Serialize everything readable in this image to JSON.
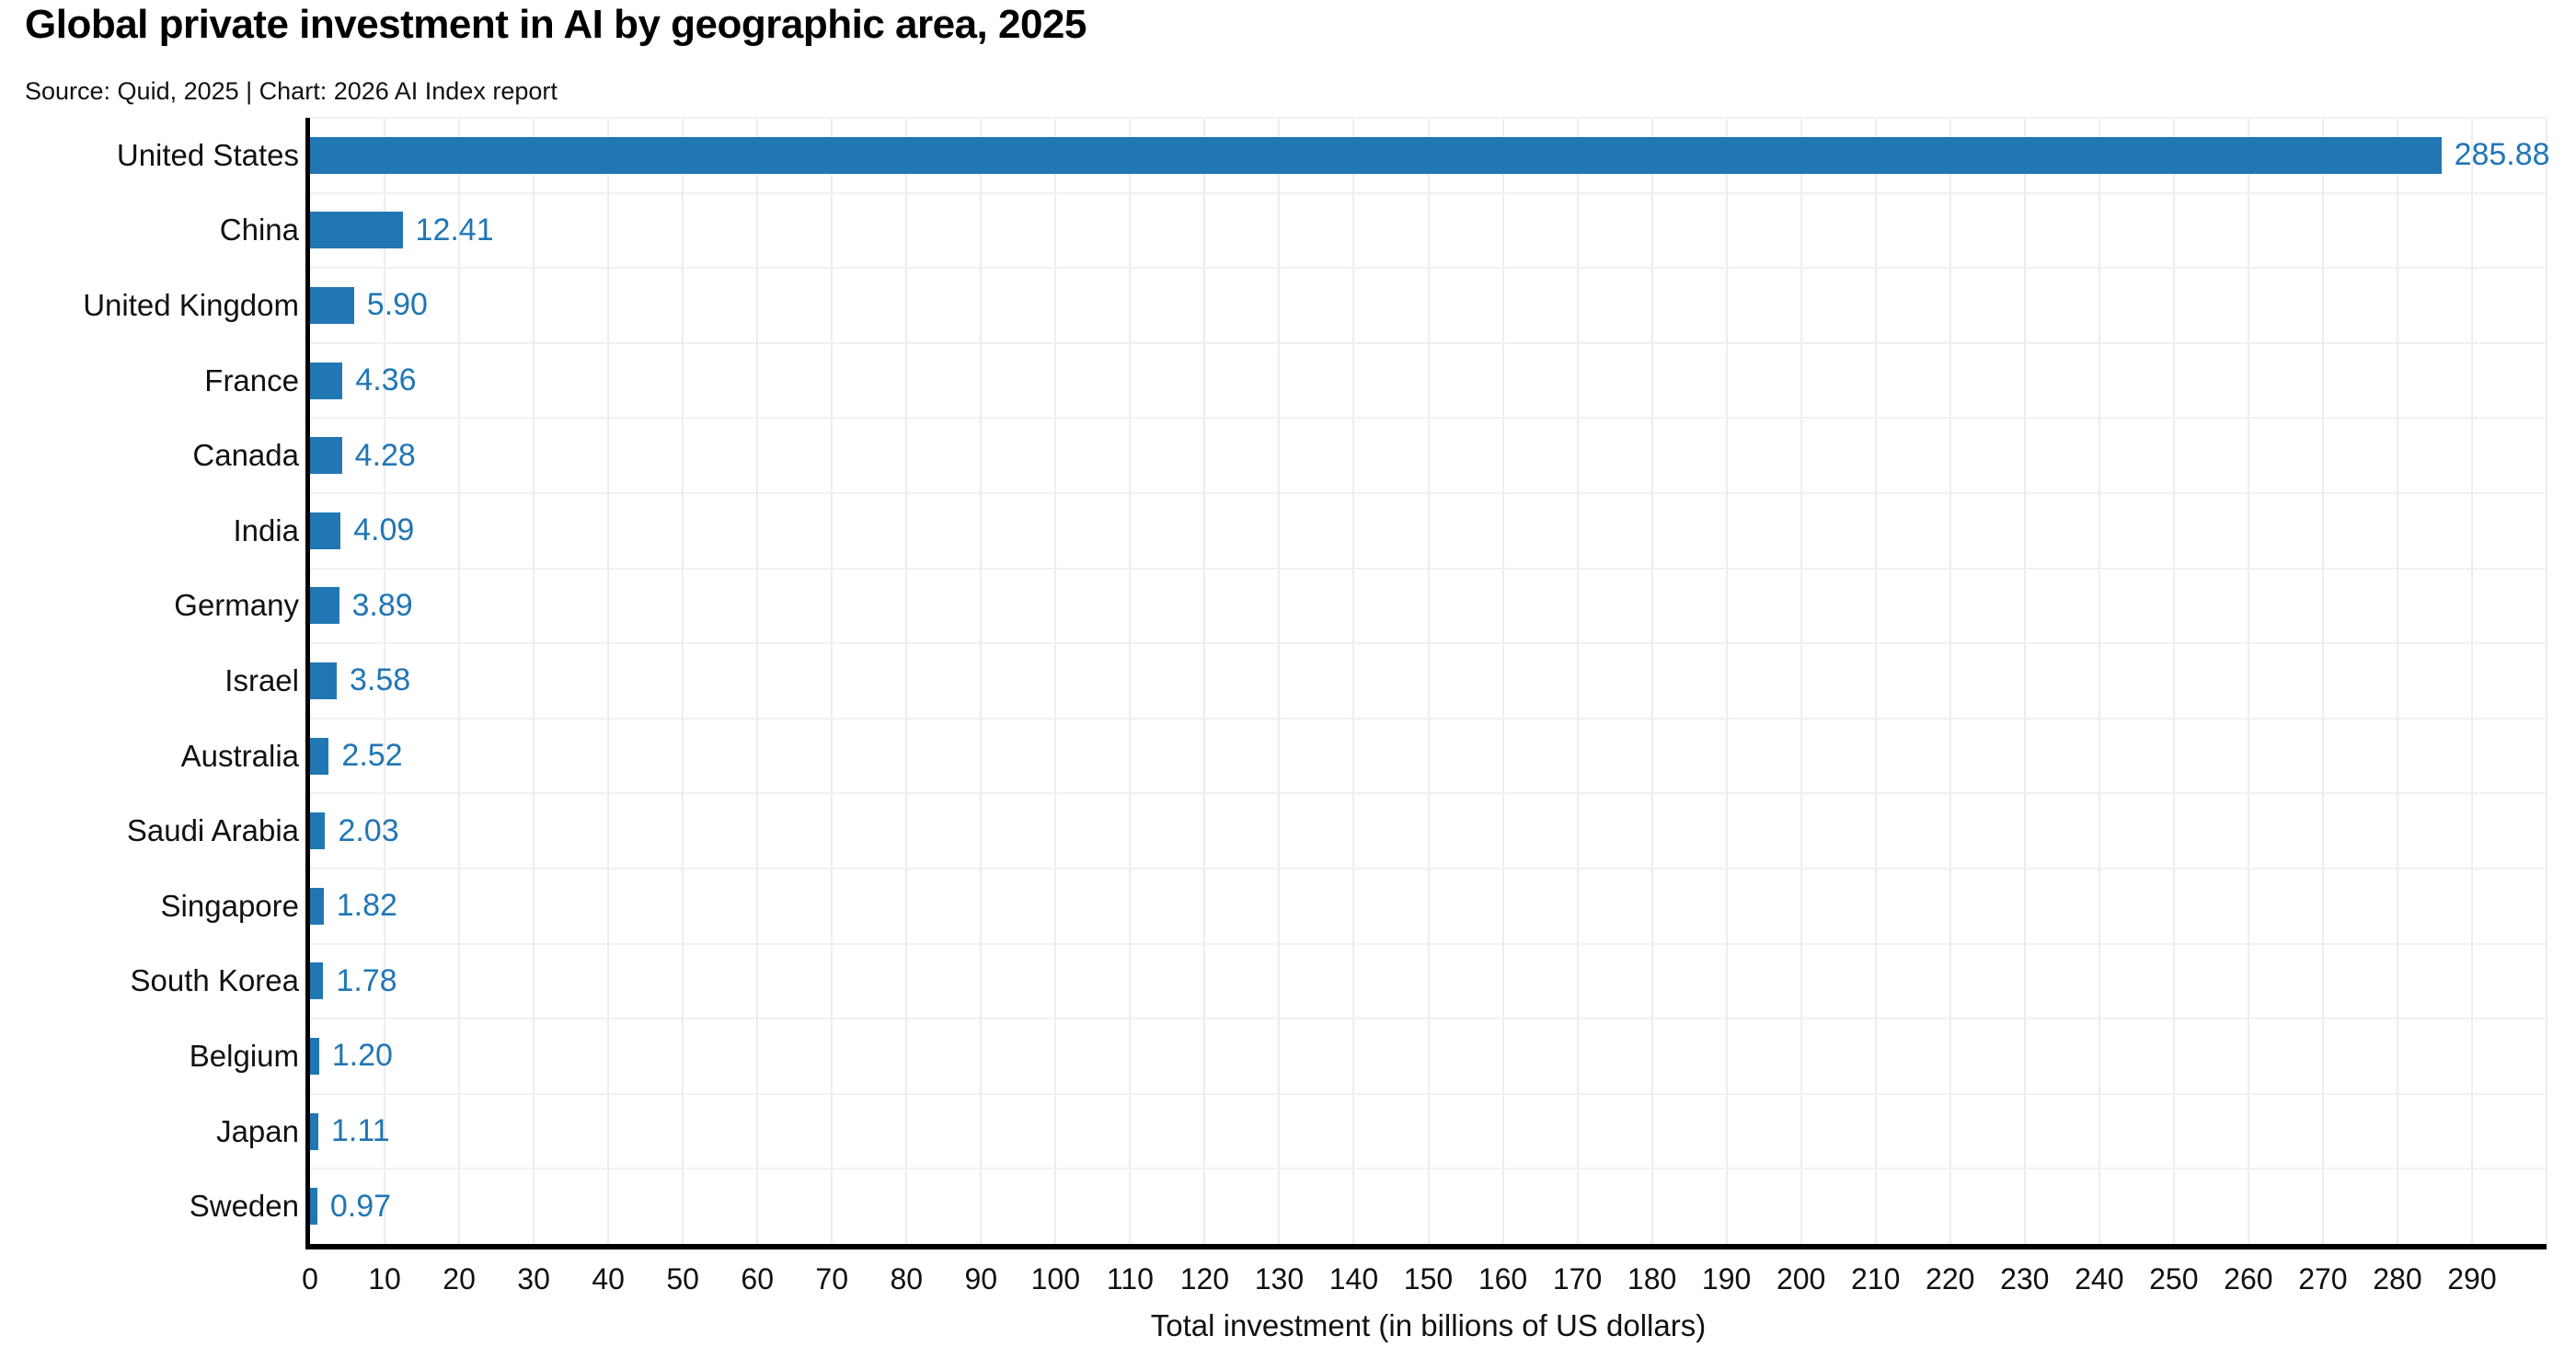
{
  "header": {
    "title": "Global private investment in AI by geographic area, 2025",
    "subtitle": "Source: Quid, 2025 | Chart: 2026 AI Index report"
  },
  "chart_data": {
    "type": "bar",
    "orientation": "horizontal",
    "title": "Global private investment in AI by geographic area, 2025",
    "subtitle": "Source: Quid, 2025 | Chart: 2026 AI Index report",
    "categories": [
      "United States",
      "China",
      "United Kingdom",
      "France",
      "Canada",
      "India",
      "Germany",
      "Israel",
      "Australia",
      "Saudi Arabia",
      "Singapore",
      "South Korea",
      "Belgium",
      "Japan",
      "Sweden"
    ],
    "values": [
      285.88,
      12.41,
      5.9,
      4.36,
      4.28,
      4.09,
      3.89,
      3.58,
      2.52,
      2.03,
      1.82,
      1.78,
      1.2,
      1.11,
      0.97
    ],
    "value_labels": [
      "285.88",
      "12.41",
      "5.90",
      "4.36",
      "4.28",
      "4.09",
      "3.89",
      "3.58",
      "2.52",
      "2.03",
      "1.82",
      "1.78",
      "1.20",
      "1.11",
      "0.97"
    ],
    "xlabel": "Total investment (in billions of US dollars)",
    "xlim": [
      0,
      300
    ],
    "xtick_step": 10,
    "xtick_labels": [
      "0",
      "10",
      "20",
      "30",
      "40",
      "50",
      "60",
      "70",
      "80",
      "90",
      "100",
      "110",
      "120",
      "130",
      "140",
      "150",
      "160",
      "170",
      "180",
      "190",
      "200",
      "210",
      "220",
      "230",
      "240",
      "250",
      "260",
      "270",
      "280",
      "290"
    ],
    "grid": true,
    "legend": "none",
    "colors": {
      "bar": "#2177B4",
      "value_label": "#2176B5",
      "axis_spine": "#000000",
      "gridline": "#ededed",
      "text": "#111111",
      "background": "#ffffff"
    }
  }
}
